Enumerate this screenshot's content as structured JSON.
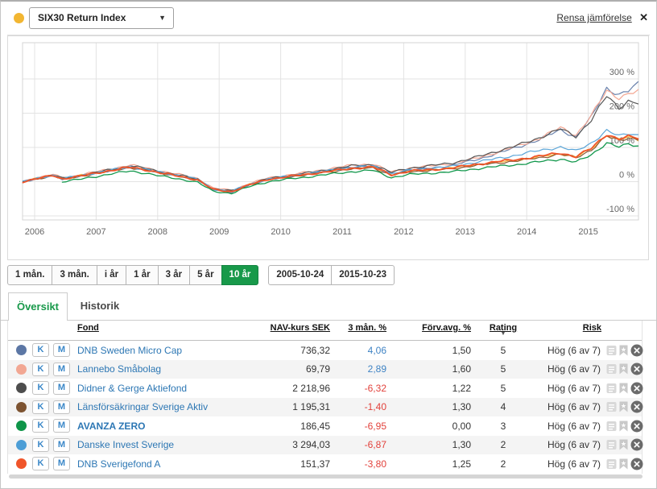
{
  "header": {
    "series_dot_color": "#f2b632",
    "index_selector_value": "SIX30 Return Index",
    "clear_comparison_label": "Rensa jämförelse",
    "close_label": "✕"
  },
  "chart_data": {
    "type": "line",
    "title": "",
    "ylabel": "",
    "xlabel": "",
    "ylim": [
      -112,
      405
    ],
    "yticks": [
      300,
      200,
      100,
      0,
      -100
    ],
    "ytick_suffix": " %",
    "xticks": [
      2006,
      2007,
      2008,
      2009,
      2010,
      2011,
      2012,
      2013,
      2014,
      2015
    ],
    "grid": true,
    "legend_position": "none",
    "x": [
      2005.81,
      2006.05,
      2006.3,
      2006.45,
      2006.7,
      2007.0,
      2007.25,
      2007.55,
      2007.8,
      2008.05,
      2008.35,
      2008.65,
      2008.9,
      2009.2,
      2009.5,
      2009.8,
      2010.1,
      2010.45,
      2010.8,
      2011.15,
      2011.5,
      2011.8,
      2012.1,
      2012.45,
      2012.8,
      2013.15,
      2013.5,
      2013.85,
      2014.2,
      2014.55,
      2014.8,
      2015.05,
      2015.3,
      2015.5,
      2015.65,
      2015.81
    ],
    "series": [
      {
        "name": "SIX30 Return Index",
        "color": "#f5b73b",
        "width": 1.2,
        "values": [
          0,
          10,
          19,
          9,
          16,
          26,
          33,
          42,
          35,
          26,
          17,
          6,
          -22,
          -28,
          -8,
          8,
          15,
          23,
          31,
          39,
          43,
          21,
          31,
          35,
          40,
          49,
          56,
          63,
          72,
          82,
          72,
          96,
          136,
          122,
          130,
          122
        ]
      },
      {
        "name": "DNB Sweden Micro Cap",
        "color": "#6b83ad",
        "width": 1.2,
        "values": [
          0,
          9,
          18,
          8,
          15,
          25,
          34,
          44,
          37,
          27,
          17,
          6,
          -24,
          -30,
          -10,
          7,
          15,
          24,
          33,
          43,
          47,
          23,
          34,
          40,
          48,
          63,
          81,
          101,
          122,
          152,
          130,
          188,
          274,
          254,
          264,
          286
        ]
      },
      {
        "name": "Lannebo Småbolag",
        "color": "#f4a793",
        "width": 1.2,
        "values": [
          2,
          11,
          21,
          11,
          18,
          29,
          38,
          48,
          41,
          31,
          21,
          10,
          -19,
          -25,
          -5,
          11,
          19,
          28,
          38,
          48,
          52,
          28,
          40,
          46,
          53,
          67,
          85,
          104,
          126,
          158,
          136,
          192,
          266,
          246,
          256,
          263
        ]
      },
      {
        "name": "Didner & Gerge Aktiefond",
        "color": "#555555",
        "width": 1.2,
        "values": [
          1,
          10,
          20,
          10,
          17,
          27,
          36,
          46,
          39,
          29,
          19,
          8,
          -21,
          -27,
          -7,
          9,
          17,
          26,
          36,
          46,
          50,
          27,
          40,
          47,
          55,
          70,
          88,
          106,
          128,
          154,
          132,
          180,
          250,
          216,
          236,
          229
        ]
      },
      {
        "name": "Länsförsäkringar Sverige Aktiv",
        "color": "#8a5a35",
        "width": 1.2,
        "values": [
          0,
          9,
          17,
          8,
          14,
          24,
          32,
          41,
          34,
          25,
          16,
          5,
          -23,
          -29,
          -9,
          6,
          13,
          21,
          29,
          37,
          41,
          19,
          29,
          33,
          38,
          47,
          54,
          61,
          70,
          80,
          70,
          93,
          133,
          120,
          128,
          124
        ]
      },
      {
        "name": "Danske Invest Sverige",
        "color": "#5aa5d8",
        "width": 1.2,
        "values": [
          0,
          10,
          19,
          9,
          16,
          26,
          34,
          43,
          36,
          27,
          18,
          7,
          -22,
          -28,
          -8,
          8,
          15,
          24,
          33,
          42,
          46,
          23,
          34,
          39,
          45,
          56,
          67,
          78,
          91,
          101,
          89,
          113,
          149,
          133,
          141,
          137
        ]
      },
      {
        "name": "AVANZA ZERO",
        "color": "#13984d",
        "width": 1.3,
        "values": [
          null,
          null,
          null,
          0,
          6,
          15,
          23,
          31,
          25,
          16,
          8,
          -2,
          -28,
          -34,
          -14,
          0,
          7,
          14,
          22,
          29,
          33,
          12,
          21,
          25,
          29,
          37,
          44,
          50,
          58,
          66,
          57,
          78,
          114,
          101,
          109,
          104
        ]
      },
      {
        "name": "DNB Sverigefond A",
        "color": "#f0552a",
        "width": 1.8,
        "values": [
          0,
          9,
          18,
          8,
          15,
          25,
          33,
          42,
          35,
          25,
          16,
          5,
          -23,
          -29,
          -9,
          7,
          14,
          22,
          30,
          39,
          43,
          20,
          31,
          35,
          40,
          50,
          58,
          65,
          74,
          84,
          73,
          97,
          139,
          124,
          131,
          127
        ]
      }
    ]
  },
  "toolbar": {
    "ranges": [
      {
        "label": "1 mån.",
        "active": false
      },
      {
        "label": "3 mån.",
        "active": false
      },
      {
        "label": "i år",
        "active": false
      },
      {
        "label": "1 år",
        "active": false
      },
      {
        "label": "3 år",
        "active": false
      },
      {
        "label": "5 år",
        "active": false
      },
      {
        "label": "10 år",
        "active": true
      }
    ],
    "active_color": "#18994a",
    "date_from": "2005-10-24",
    "date_to": "2015-10-23"
  },
  "tabs": [
    {
      "label": "Översikt",
      "active": true
    },
    {
      "label": "Historik",
      "active": false
    }
  ],
  "table": {
    "columns": {
      "fund": "Fond",
      "nav": "NAV-kurs SEK",
      "change": "3 mån. %",
      "fee": "Förv.avg. %",
      "rating": "Rating",
      "risk": "Risk"
    },
    "sort_indicator": "▼",
    "buy_label": "K",
    "monthly_label": "M",
    "colors": {
      "positive": "#3f83c4",
      "negative": "#e2423c",
      "link": "#2d77b4"
    },
    "rows": [
      {
        "dot_color": "#5c77a5",
        "name": "DNB Sweden Micro Cap",
        "nav": "736,32",
        "change": "4,06",
        "change_positive": true,
        "fee": "1,50",
        "rating": "5",
        "risk": "Hög (6 av 7)",
        "bold": false
      },
      {
        "dot_color": "#f2a793",
        "name": "Lannebo Småbolag",
        "nav": "69,79",
        "change": "2,89",
        "change_positive": true,
        "fee": "1,60",
        "rating": "5",
        "risk": "Hög (6 av 7)",
        "bold": false
      },
      {
        "dot_color": "#4d4d4d",
        "name": "Didner & Gerge Aktiefond",
        "nav": "2 218,96",
        "change": "-6,32",
        "change_positive": false,
        "fee": "1,22",
        "rating": "5",
        "risk": "Hög (6 av 7)",
        "bold": false
      },
      {
        "dot_color": "#7d5331",
        "name": "Länsförsäkringar Sverige Aktiv",
        "nav": "1 195,31",
        "change": "-1,40",
        "change_positive": false,
        "fee": "1,30",
        "rating": "4",
        "risk": "Hög (6 av 7)",
        "bold": false
      },
      {
        "dot_color": "#0f9549",
        "name": "AVANZA ZERO",
        "nav": "186,45",
        "change": "-6,95",
        "change_positive": false,
        "fee": "0,00",
        "rating": "3",
        "risk": "Hög (6 av 7)",
        "bold": true
      },
      {
        "dot_color": "#4d9ed6",
        "name": "Danske Invest Sverige",
        "nav": "3 294,03",
        "change": "-6,87",
        "change_positive": false,
        "fee": "1,30",
        "rating": "2",
        "risk": "Hög (6 av 7)",
        "bold": false
      },
      {
        "dot_color": "#f0552a",
        "name": "DNB Sverigefond A",
        "nav": "151,37",
        "change": "-3,80",
        "change_positive": false,
        "fee": "1,25",
        "rating": "2",
        "risk": "Hög (6 av 7)",
        "bold": false
      }
    ]
  }
}
